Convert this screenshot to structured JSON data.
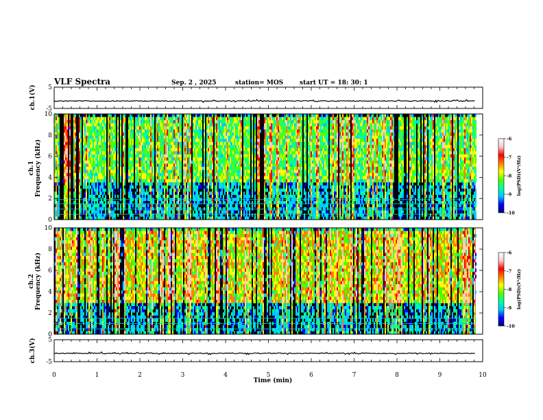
{
  "header": {
    "title": "VLF Spectra",
    "date": "Sep. 2 , 2025",
    "station": "station= MOS",
    "start_ut": "start UT =  18: 30: 1"
  },
  "colors": {
    "scale": [
      "#000080",
      "#0000ff",
      "#00c8ff",
      "#00ffa0",
      "#50ff00",
      "#ffff00",
      "#ff8000",
      "#ff0000",
      "#ffc8c8",
      "#ffffff"
    ],
    "background": "#000000",
    "waveform": "#000000"
  },
  "chart_data": [
    {
      "type": "line",
      "panel": "ch1-waveform",
      "ylabel": "ch.1(V)",
      "ylim": [
        -5,
        5
      ],
      "yticks": [
        "5",
        "-5"
      ],
      "level": -1.5
    },
    {
      "type": "heatmap",
      "panel": "ch1-spectrogram",
      "ylabel": "ch.1\nFrequency (kHz)",
      "ylim": [
        0,
        10
      ],
      "yticks": [
        "10",
        "8",
        "6",
        "4",
        "2",
        "0"
      ],
      "xlim": [
        0,
        10
      ],
      "data_end_min": 9.83,
      "hum_lines_khz": [
        0.5,
        1.0,
        1.5,
        1.9
      ],
      "colorbar": {
        "label": "log(PSD)(V²/Hz)",
        "ticks": [
          "-6",
          "-7",
          "-8",
          "-9",
          "-10"
        ],
        "range": [
          -10,
          -6
        ]
      },
      "noise_band_khz": [
        3.5,
        10
      ]
    },
    {
      "type": "heatmap",
      "panel": "ch2-spectrogram",
      "ylabel": "ch.2\nFrequency (kHz)",
      "ylim": [
        0,
        10
      ],
      "yticks": [
        "10",
        "8",
        "6",
        "4",
        "2",
        "0"
      ],
      "xlim": [
        0,
        10
      ],
      "data_end_min": 9.83,
      "hum_lines_khz": [
        0.5,
        1.0,
        1.5
      ],
      "colorbar": {
        "label": "log(PSD)(V²/Hz)",
        "ticks": [
          "-6",
          "-7",
          "-8",
          "-9",
          "-10"
        ],
        "range": [
          -10,
          -6
        ]
      },
      "noise_band_khz": [
        3.0,
        10
      ]
    },
    {
      "type": "line",
      "panel": "ch3-waveform",
      "ylabel": "ch.3(V)",
      "ylim": [
        -5,
        5
      ],
      "yticks": [
        "5",
        "-5"
      ],
      "level": -1.2
    }
  ],
  "xaxis": {
    "label": "Time (min)",
    "range": [
      0,
      10
    ],
    "ticks": [
      "0",
      "1",
      "2",
      "3",
      "4",
      "5",
      "6",
      "7",
      "8",
      "9",
      "10"
    ]
  }
}
